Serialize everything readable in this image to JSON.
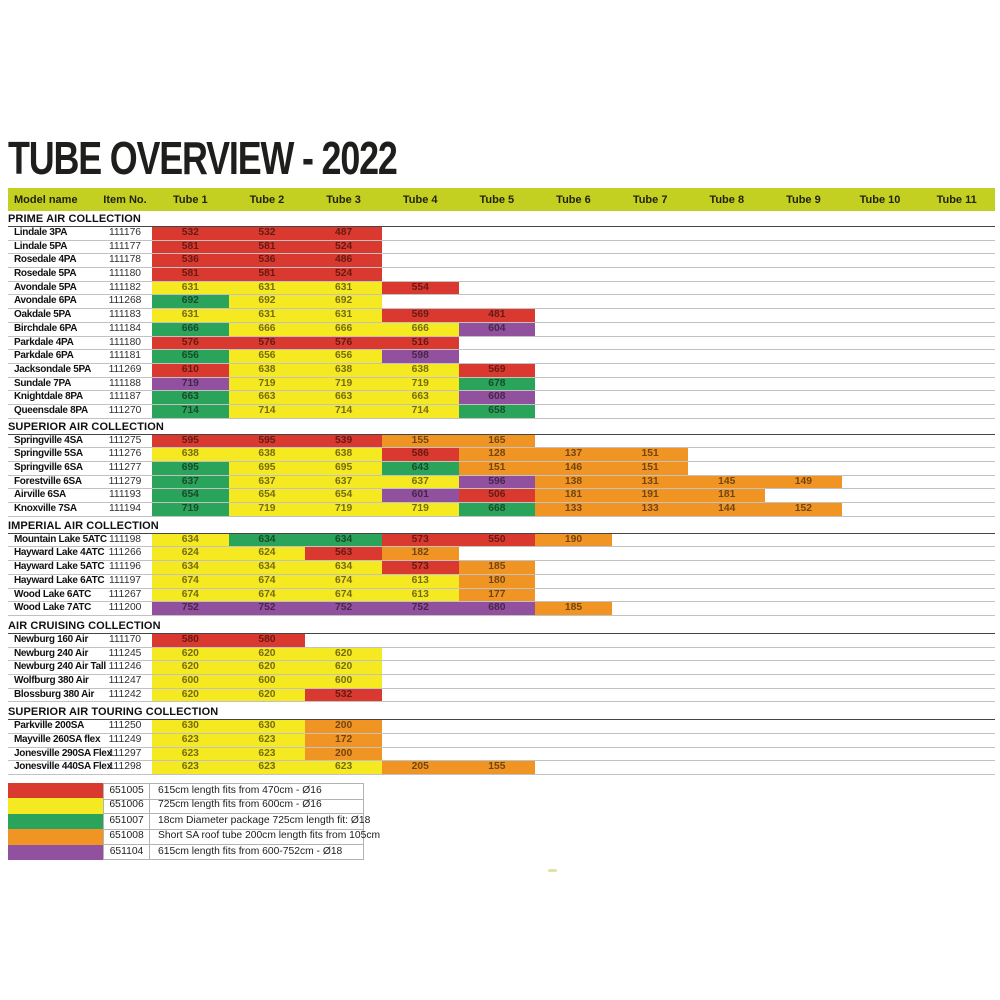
{
  "title": "TUBE OVERVIEW - 2022",
  "header": {
    "model": "Model name",
    "item": "Item No.",
    "tubes": [
      "Tube 1",
      "Tube 2",
      "Tube 3",
      "Tube 4",
      "Tube 5",
      "Tube 6",
      "Tube 7",
      "Tube 8",
      "Tube 9",
      "Tube 10",
      "Tube 11"
    ]
  },
  "colors": {
    "header_bar": "#c3d022",
    "red": "#d9392e",
    "yellow": "#f5e921",
    "green": "#2aa35b",
    "orange": "#f09523",
    "purple": "#91519f"
  },
  "sections": [
    {
      "name": "PRIME AIR COLLECTION",
      "rows": [
        {
          "model": "Lindale 3PA",
          "item": "111176",
          "tubes": [
            {
              "v": "532",
              "c": "red"
            },
            {
              "v": "532",
              "c": "red"
            },
            {
              "v": "487",
              "c": "red"
            }
          ]
        },
        {
          "model": "Lindale 5PA",
          "item": "111177",
          "tubes": [
            {
              "v": "581",
              "c": "red"
            },
            {
              "v": "581",
              "c": "red"
            },
            {
              "v": "524",
              "c": "red"
            }
          ]
        },
        {
          "model": "Rosedale 4PA",
          "item": "111178",
          "tubes": [
            {
              "v": "536",
              "c": "red"
            },
            {
              "v": "536",
              "c": "red"
            },
            {
              "v": "486",
              "c": "red"
            }
          ]
        },
        {
          "model": "Rosedale 5PA",
          "item": "111180",
          "tubes": [
            {
              "v": "581",
              "c": "red"
            },
            {
              "v": "581",
              "c": "red"
            },
            {
              "v": "524",
              "c": "red"
            }
          ]
        },
        {
          "model": "Avondale 5PA",
          "item": "111182",
          "tubes": [
            {
              "v": "631",
              "c": "yellow"
            },
            {
              "v": "631",
              "c": "yellow"
            },
            {
              "v": "631",
              "c": "yellow"
            },
            {
              "v": "554",
              "c": "red"
            }
          ]
        },
        {
          "model": "Avondale 6PA",
          "item": "111268",
          "tubes": [
            {
              "v": "692",
              "c": "green"
            },
            {
              "v": "692",
              "c": "yellow"
            },
            {
              "v": "692",
              "c": "yellow"
            }
          ]
        },
        {
          "model": "Oakdale 5PA",
          "item": "111183",
          "tubes": [
            {
              "v": "631",
              "c": "yellow"
            },
            {
              "v": "631",
              "c": "yellow"
            },
            {
              "v": "631",
              "c": "yellow"
            },
            {
              "v": "569",
              "c": "red"
            },
            {
              "v": "481",
              "c": "red"
            }
          ]
        },
        {
          "model": "Birchdale 6PA",
          "item": "111184",
          "tubes": [
            {
              "v": "666",
              "c": "green"
            },
            {
              "v": "666",
              "c": "yellow"
            },
            {
              "v": "666",
              "c": "yellow"
            },
            {
              "v": "666",
              "c": "yellow"
            },
            {
              "v": "604",
              "c": "purple"
            }
          ]
        },
        {
          "model": "Parkdale 4PA",
          "item": "111180",
          "tubes": [
            {
              "v": "576",
              "c": "red"
            },
            {
              "v": "576",
              "c": "red"
            },
            {
              "v": "576",
              "c": "red"
            },
            {
              "v": "516",
              "c": "red"
            }
          ]
        },
        {
          "model": "Parkdale 6PA",
          "item": "111181",
          "tubes": [
            {
              "v": "656",
              "c": "green"
            },
            {
              "v": "656",
              "c": "yellow"
            },
            {
              "v": "656",
              "c": "yellow"
            },
            {
              "v": "598",
              "c": "purple"
            }
          ]
        },
        {
          "model": "Jacksondale 5PA",
          "item": "111269",
          "tubes": [
            {
              "v": "610",
              "c": "red"
            },
            {
              "v": "638",
              "c": "yellow"
            },
            {
              "v": "638",
              "c": "yellow"
            },
            {
              "v": "638",
              "c": "yellow"
            },
            {
              "v": "569",
              "c": "red"
            }
          ]
        },
        {
          "model": "Sundale 7PA",
          "item": "111188",
          "tubes": [
            {
              "v": "719",
              "c": "purple"
            },
            {
              "v": "719",
              "c": "yellow"
            },
            {
              "v": "719",
              "c": "yellow"
            },
            {
              "v": "719",
              "c": "yellow"
            },
            {
              "v": "678",
              "c": "green"
            }
          ]
        },
        {
          "model": "Knightdale 8PA",
          "item": "111187",
          "tubes": [
            {
              "v": "663",
              "c": "green"
            },
            {
              "v": "663",
              "c": "yellow"
            },
            {
              "v": "663",
              "c": "yellow"
            },
            {
              "v": "663",
              "c": "yellow"
            },
            {
              "v": "608",
              "c": "purple"
            }
          ]
        },
        {
          "model": "Queensdale 8PA",
          "item": "111270",
          "tubes": [
            {
              "v": "714",
              "c": "green"
            },
            {
              "v": "714",
              "c": "yellow"
            },
            {
              "v": "714",
              "c": "yellow"
            },
            {
              "v": "714",
              "c": "yellow"
            },
            {
              "v": "658",
              "c": "green"
            }
          ]
        }
      ]
    },
    {
      "name": "SUPERIOR AIR COLLECTION",
      "rows": [
        {
          "model": "Springville 4SA",
          "item": "111275",
          "tubes": [
            {
              "v": "595",
              "c": "red"
            },
            {
              "v": "595",
              "c": "red"
            },
            {
              "v": "539",
              "c": "red"
            },
            {
              "v": "155",
              "c": "orange"
            },
            {
              "v": "165",
              "c": "orange"
            }
          ]
        },
        {
          "model": "Springville 5SA",
          "item": "111276",
          "tubes": [
            {
              "v": "638",
              "c": "yellow"
            },
            {
              "v": "638",
              "c": "yellow"
            },
            {
              "v": "638",
              "c": "yellow"
            },
            {
              "v": "586",
              "c": "red"
            },
            {
              "v": "128",
              "c": "orange"
            },
            {
              "v": "137",
              "c": "orange"
            },
            {
              "v": "151",
              "c": "orange"
            }
          ]
        },
        {
          "model": "Springville 6SA",
          "item": "111277",
          "tubes": [
            {
              "v": "695",
              "c": "green"
            },
            {
              "v": "695",
              "c": "yellow"
            },
            {
              "v": "695",
              "c": "yellow"
            },
            {
              "v": "643",
              "c": "green"
            },
            {
              "v": "151",
              "c": "orange"
            },
            {
              "v": "146",
              "c": "orange"
            },
            {
              "v": "151",
              "c": "orange"
            }
          ]
        },
        {
          "model": "Forestville 6SA",
          "item": "111279",
          "tubes": [
            {
              "v": "637",
              "c": "green"
            },
            {
              "v": "637",
              "c": "yellow"
            },
            {
              "v": "637",
              "c": "yellow"
            },
            {
              "v": "637",
              "c": "yellow"
            },
            {
              "v": "596",
              "c": "purple"
            },
            {
              "v": "138",
              "c": "orange"
            },
            {
              "v": "131",
              "c": "orange"
            },
            {
              "v": "145",
              "c": "orange"
            },
            {
              "v": "149",
              "c": "orange"
            }
          ]
        },
        {
          "model": "Airville 6SA",
          "item": "111193",
          "tubes": [
            {
              "v": "654",
              "c": "green"
            },
            {
              "v": "654",
              "c": "yellow"
            },
            {
              "v": "654",
              "c": "yellow"
            },
            {
              "v": "601",
              "c": "purple"
            },
            {
              "v": "506",
              "c": "red"
            },
            {
              "v": "181",
              "c": "orange"
            },
            {
              "v": "191",
              "c": "orange"
            },
            {
              "v": "181",
              "c": "orange"
            }
          ]
        },
        {
          "model": "Knoxville 7SA",
          "item": "111194",
          "tubes": [
            {
              "v": "719",
              "c": "green"
            },
            {
              "v": "719",
              "c": "yellow"
            },
            {
              "v": "719",
              "c": "yellow"
            },
            {
              "v": "719",
              "c": "yellow"
            },
            {
              "v": "668",
              "c": "green"
            },
            {
              "v": "133",
              "c": "orange"
            },
            {
              "v": "133",
              "c": "orange"
            },
            {
              "v": "144",
              "c": "orange"
            },
            {
              "v": "152",
              "c": "orange"
            }
          ]
        }
      ]
    },
    {
      "name": "IMPERIAL AIR COLLECTION",
      "rows": [
        {
          "model": "Mountain Lake 5ATC",
          "item": "111198",
          "tubes": [
            {
              "v": "634",
              "c": "yellow"
            },
            {
              "v": "634",
              "c": "green"
            },
            {
              "v": "634",
              "c": "green"
            },
            {
              "v": "573",
              "c": "red"
            },
            {
              "v": "550",
              "c": "red"
            },
            {
              "v": "190",
              "c": "orange"
            }
          ]
        },
        {
          "model": "Hayward Lake 4ATC",
          "item": "111266",
          "tubes": [
            {
              "v": "624",
              "c": "yellow"
            },
            {
              "v": "624",
              "c": "yellow"
            },
            {
              "v": "563",
              "c": "red"
            },
            {
              "v": "182",
              "c": "orange"
            }
          ]
        },
        {
          "model": "Hayward Lake 5ATC",
          "item": "111196",
          "tubes": [
            {
              "v": "634",
              "c": "yellow"
            },
            {
              "v": "634",
              "c": "yellow"
            },
            {
              "v": "634",
              "c": "yellow"
            },
            {
              "v": "573",
              "c": "red"
            },
            {
              "v": "185",
              "c": "orange"
            }
          ]
        },
        {
          "model": "Hayward Lake 6ATC",
          "item": "111197",
          "tubes": [
            {
              "v": "674",
              "c": "yellow"
            },
            {
              "v": "674",
              "c": "yellow"
            },
            {
              "v": "674",
              "c": "yellow"
            },
            {
              "v": "613",
              "c": "yellow"
            },
            {
              "v": "180",
              "c": "orange"
            }
          ]
        },
        {
          "model": "Wood Lake 6ATC",
          "item": "111267",
          "tubes": [
            {
              "v": "674",
              "c": "yellow"
            },
            {
              "v": "674",
              "c": "yellow"
            },
            {
              "v": "674",
              "c": "yellow"
            },
            {
              "v": "613",
              "c": "yellow"
            },
            {
              "v": "177",
              "c": "orange"
            }
          ]
        },
        {
          "model": "Wood Lake 7ATC",
          "item": "111200",
          "tubes": [
            {
              "v": "752",
              "c": "purple"
            },
            {
              "v": "752",
              "c": "purple"
            },
            {
              "v": "752",
              "c": "purple"
            },
            {
              "v": "752",
              "c": "purple"
            },
            {
              "v": "680",
              "c": "purple"
            },
            {
              "v": "185",
              "c": "orange"
            }
          ]
        }
      ]
    },
    {
      "name": "AIR CRUISING COLLECTION",
      "rows": [
        {
          "model": "Newburg 160 Air",
          "item": "111170",
          "tubes": [
            {
              "v": "580",
              "c": "red"
            },
            {
              "v": "580",
              "c": "red"
            }
          ]
        },
        {
          "model": "Newburg 240 Air",
          "item": "111245",
          "tubes": [
            {
              "v": "620",
              "c": "yellow"
            },
            {
              "v": "620",
              "c": "yellow"
            },
            {
              "v": "620",
              "c": "yellow"
            }
          ]
        },
        {
          "model": "Newburg 240 Air Tall",
          "item": "111246",
          "tubes": [
            {
              "v": "620",
              "c": "yellow"
            },
            {
              "v": "620",
              "c": "yellow"
            },
            {
              "v": "620",
              "c": "yellow"
            }
          ]
        },
        {
          "model": "Wolfburg 380 Air",
          "item": "111247",
          "tubes": [
            {
              "v": "600",
              "c": "yellow"
            },
            {
              "v": "600",
              "c": "yellow"
            },
            {
              "v": "600",
              "c": "yellow"
            }
          ]
        },
        {
          "model": "Blossburg 380 Air",
          "item": "111242",
          "tubes": [
            {
              "v": "620",
              "c": "yellow"
            },
            {
              "v": "620",
              "c": "yellow"
            },
            {
              "v": "532",
              "c": "red"
            }
          ]
        }
      ]
    },
    {
      "name": "SUPERIOR AIR TOURING COLLECTION",
      "rows": [
        {
          "model": "Parkville 200SA",
          "item": "111250",
          "tubes": [
            {
              "v": "630",
              "c": "yellow"
            },
            {
              "v": "630",
              "c": "yellow"
            },
            {
              "v": "200",
              "c": "orange"
            }
          ]
        },
        {
          "model": "Mayville 260SA flex",
          "item": "111249",
          "tubes": [
            {
              "v": "623",
              "c": "yellow"
            },
            {
              "v": "623",
              "c": "yellow"
            },
            {
              "v": "172",
              "c": "orange"
            }
          ]
        },
        {
          "model": "Jonesville 290SA Flex",
          "item": "111297",
          "tubes": [
            {
              "v": "623",
              "c": "yellow"
            },
            {
              "v": "623",
              "c": "yellow"
            },
            {
              "v": "200",
              "c": "orange"
            }
          ]
        },
        {
          "model": "Jonesville 440SA Flex",
          "item": "111298",
          "tubes": [
            {
              "v": "623",
              "c": "yellow"
            },
            {
              "v": "623",
              "c": "yellow"
            },
            {
              "v": "623",
              "c": "yellow"
            },
            {
              "v": "205",
              "c": "orange"
            },
            {
              "v": "155",
              "c": "orange"
            }
          ]
        }
      ]
    }
  ],
  "legend": {
    "rows": [
      {
        "color": "red",
        "code": "651005",
        "desc": "615cm length fits from 470cm - Ø16"
      },
      {
        "color": "yellow",
        "code": "651006",
        "desc": "725cm length fits from 600cm - Ø16"
      },
      {
        "color": "green",
        "code": "651007",
        "desc": "18cm Diameter package 725cm length fit: Ø18"
      },
      {
        "color": "orange",
        "code": "651008",
        "desc": "Short SA roof tube 200cm length fits from 105cm"
      },
      {
        "color": "purple",
        "code": "651104",
        "desc": "615cm length fits from 600-752cm - Ø18"
      }
    ]
  }
}
